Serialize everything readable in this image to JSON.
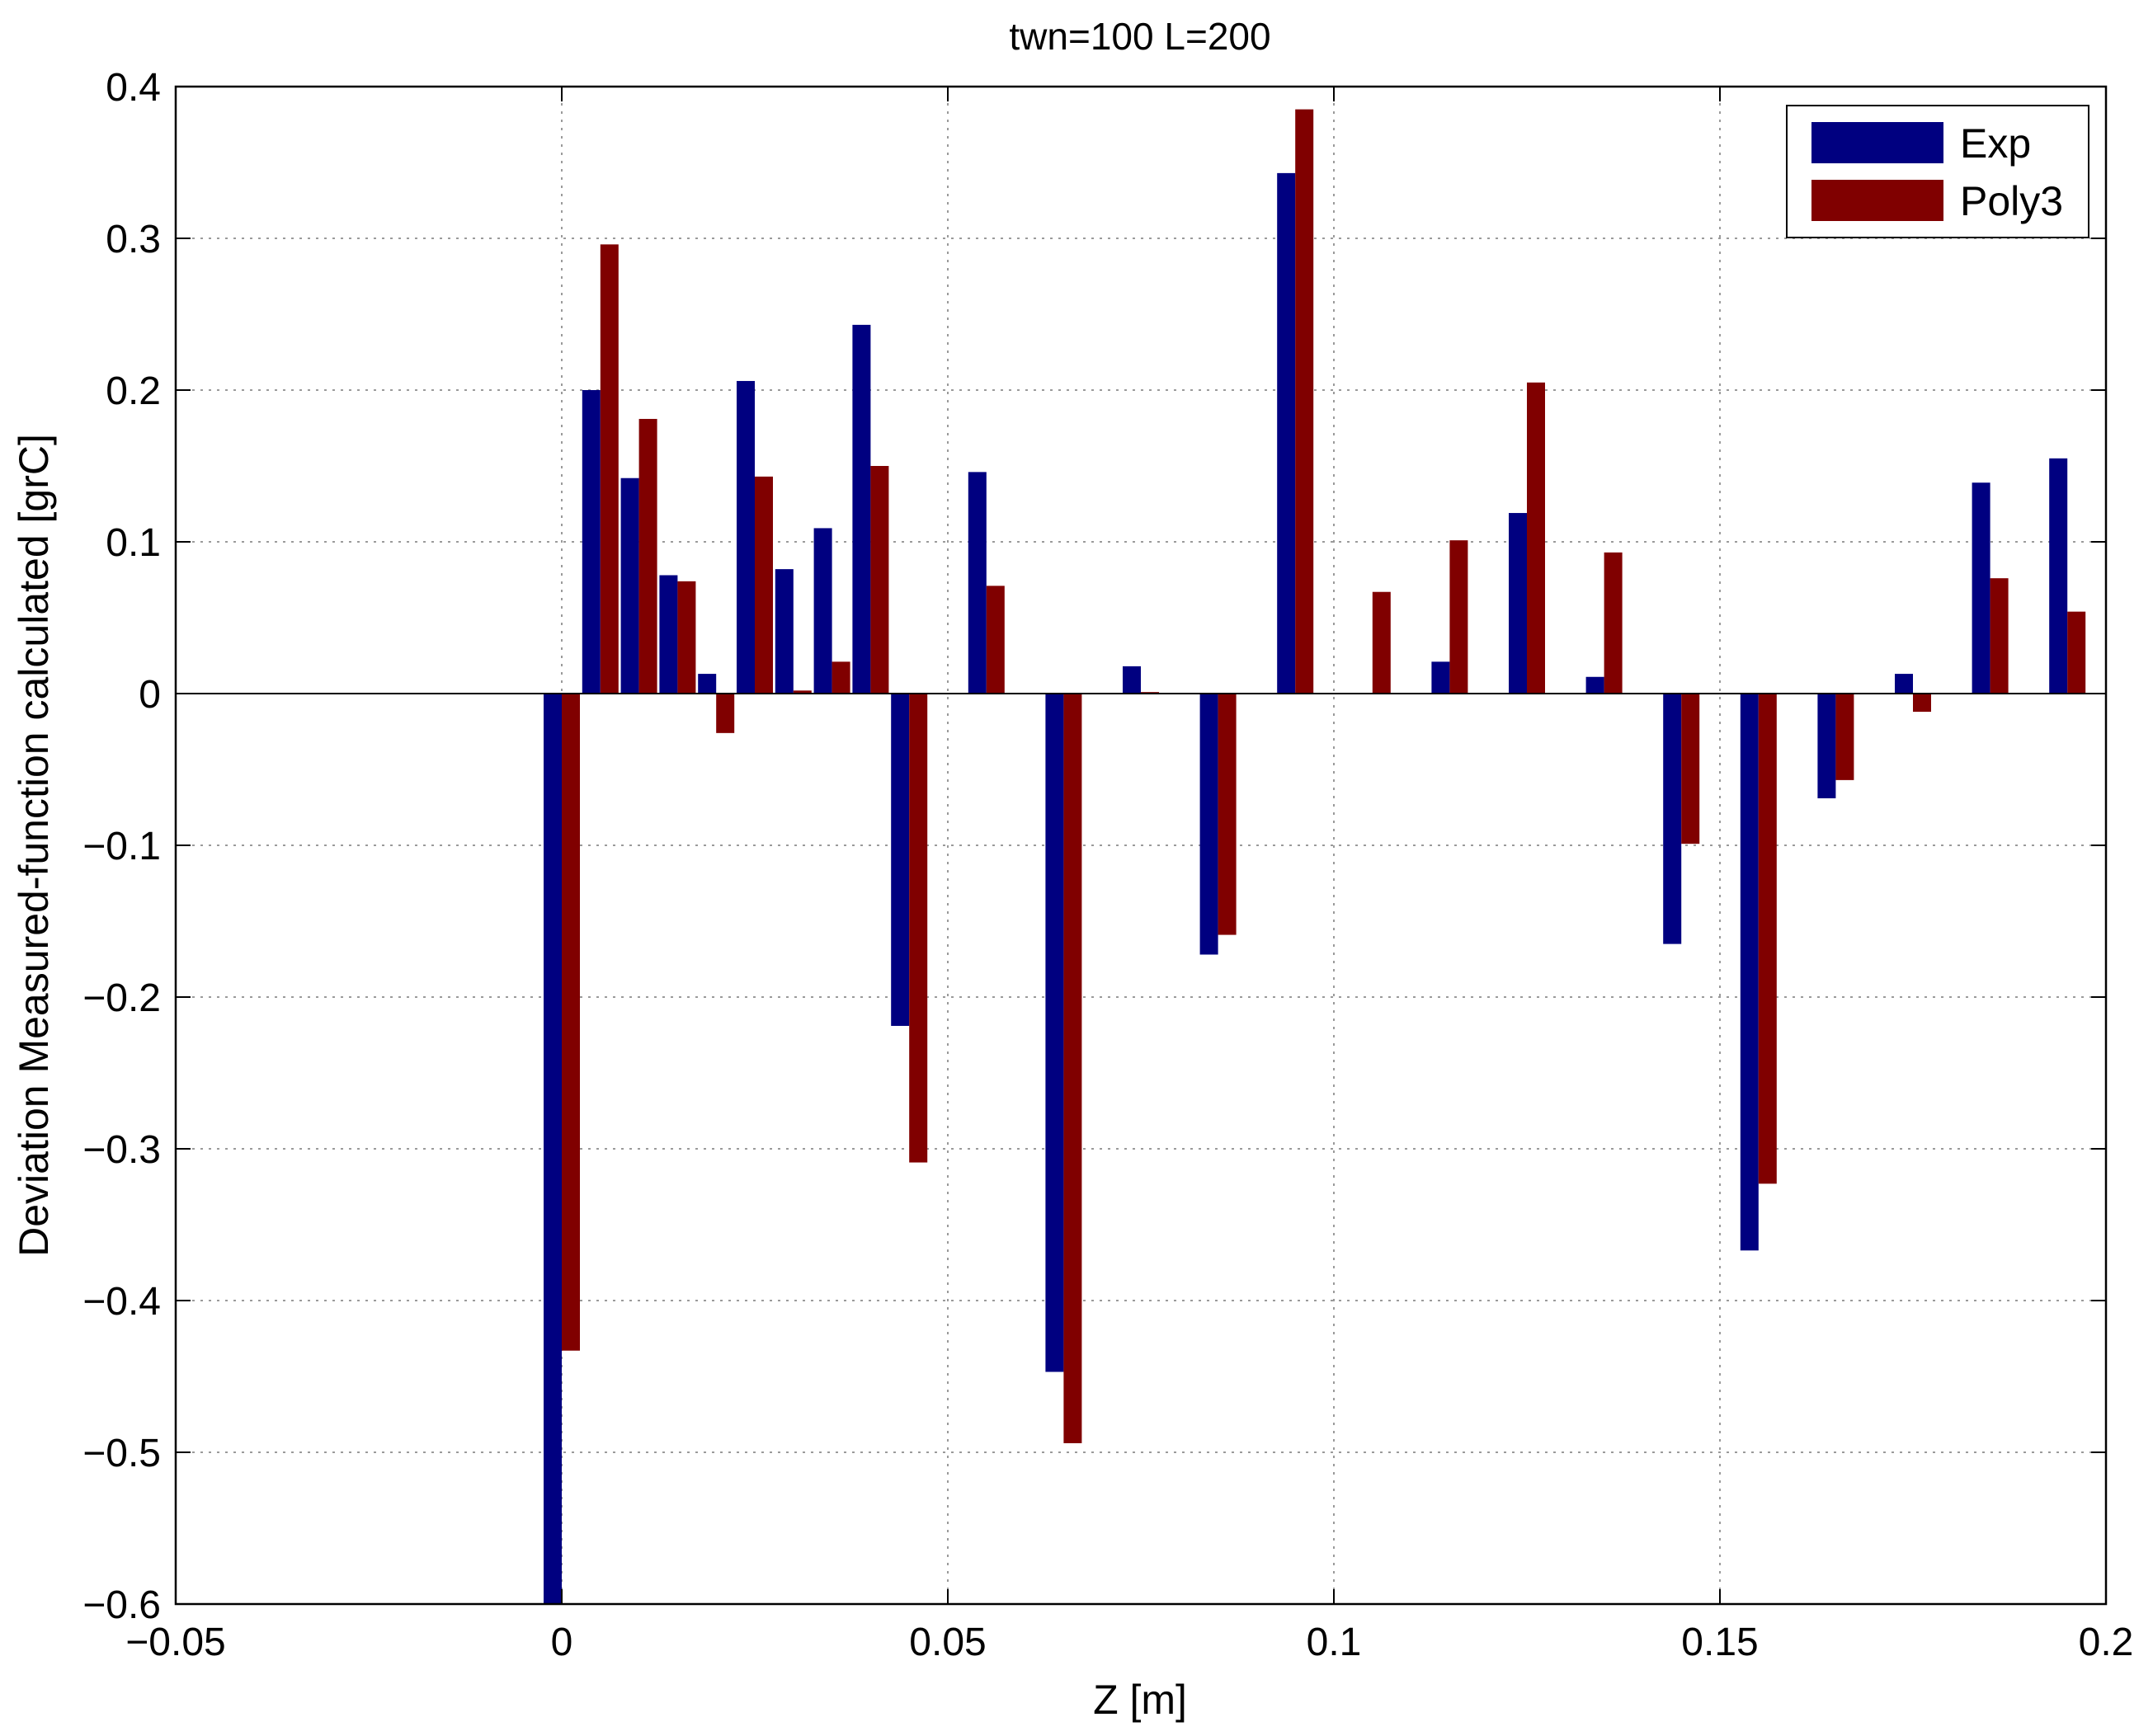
{
  "chart_data": {
    "type": "bar",
    "title": "twn=100 L=200",
    "xlabel": "Z [m]",
    "ylabel": "Deviation Measured-function calculated [grC]",
    "xlim": [
      -0.05,
      0.2
    ],
    "ylim": [
      -0.6,
      0.4
    ],
    "xticks": [
      "−0.05",
      "0",
      "0.05",
      "0.1",
      "0.15",
      "0.2"
    ],
    "yticks": [
      "0.4",
      "0.3",
      "0.2",
      "0.1",
      "0",
      "−0.1",
      "−0.2",
      "−0.3",
      "−0.4",
      "−0.5",
      "−0.6"
    ],
    "grid": true,
    "legend_position": "top-right",
    "x": [
      0,
      0.005,
      0.01,
      0.015,
      0.02,
      0.025,
      0.03,
      0.035,
      0.04,
      0.045,
      0.055,
      0.065,
      0.075,
      0.085,
      0.095,
      0.105,
      0.115,
      0.125,
      0.135,
      0.145,
      0.155,
      0.165,
      0.175,
      0.185,
      0.195
    ],
    "series": [
      {
        "name": "Exp",
        "color": "#000080",
        "values": [
          -0.6,
          0.2,
          0.142,
          0.078,
          0.013,
          0.206,
          0.082,
          0.109,
          0.243,
          -0.219,
          0.146,
          -0.447,
          0.018,
          -0.172,
          0.343,
          0.0,
          0.021,
          0.119,
          0.011,
          -0.165,
          -0.367,
          -0.069,
          0.013,
          0.139,
          0.155
        ]
      },
      {
        "name": "Poly3",
        "color": "#800000",
        "values": [
          -0.433,
          0.296,
          0.181,
          0.074,
          -0.026,
          0.143,
          0.002,
          0.021,
          0.15,
          -0.309,
          0.071,
          -0.494,
          0.001,
          -0.159,
          0.385,
          0.067,
          0.101,
          0.205,
          0.093,
          -0.099,
          -0.323,
          -0.057,
          -0.012,
          0.076,
          0.054
        ]
      }
    ]
  }
}
